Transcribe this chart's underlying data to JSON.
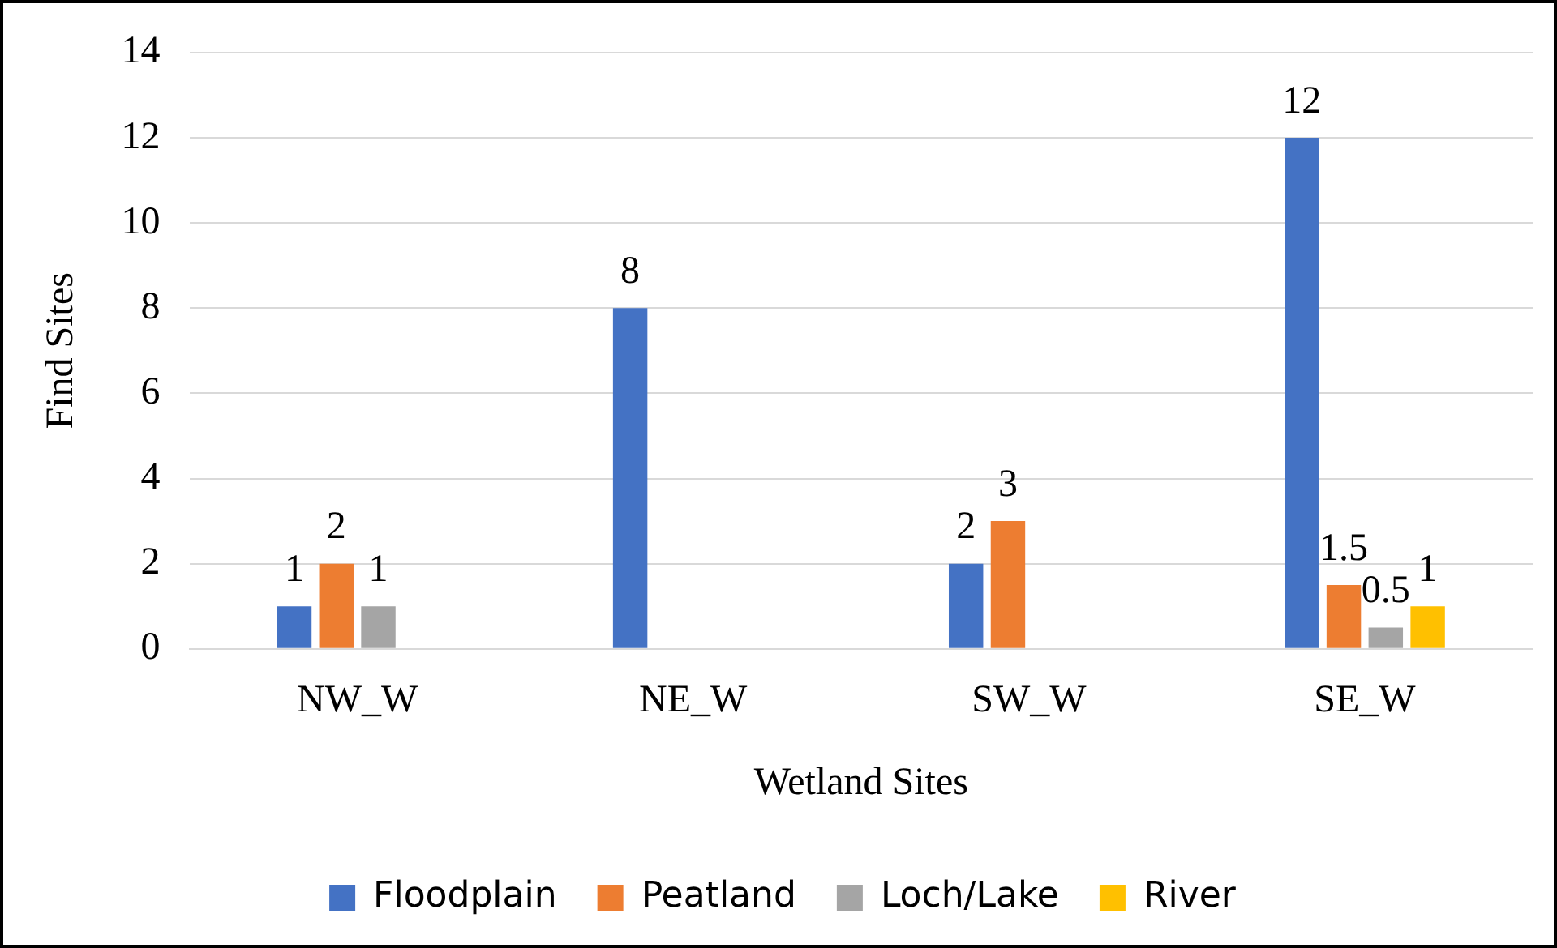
{
  "chart_data": {
    "type": "bar",
    "xlabel": "Wetland Sites",
    "ylabel": "Find Sites",
    "categories": [
      "NW_W",
      "NE_W",
      "SW_W",
      "SE_W"
    ],
    "series": [
      {
        "name": "Floodplain",
        "color": "#4472c4",
        "values": [
          1,
          8,
          2,
          12
        ]
      },
      {
        "name": "Peatland",
        "color": "#ed7d31",
        "values": [
          2,
          null,
          3,
          1.5
        ]
      },
      {
        "name": "Loch/Lake",
        "color": "#a5a5a5",
        "values": [
          1,
          null,
          null,
          0.5
        ]
      },
      {
        "name": "River",
        "color": "#ffc000",
        "values": [
          null,
          null,
          null,
          1
        ]
      }
    ],
    "ylim": [
      0,
      14
    ],
    "yticks": [
      0,
      2,
      4,
      6,
      8,
      10,
      12,
      14
    ],
    "grid": "y",
    "legend": "bottom",
    "data_labels": true
  }
}
